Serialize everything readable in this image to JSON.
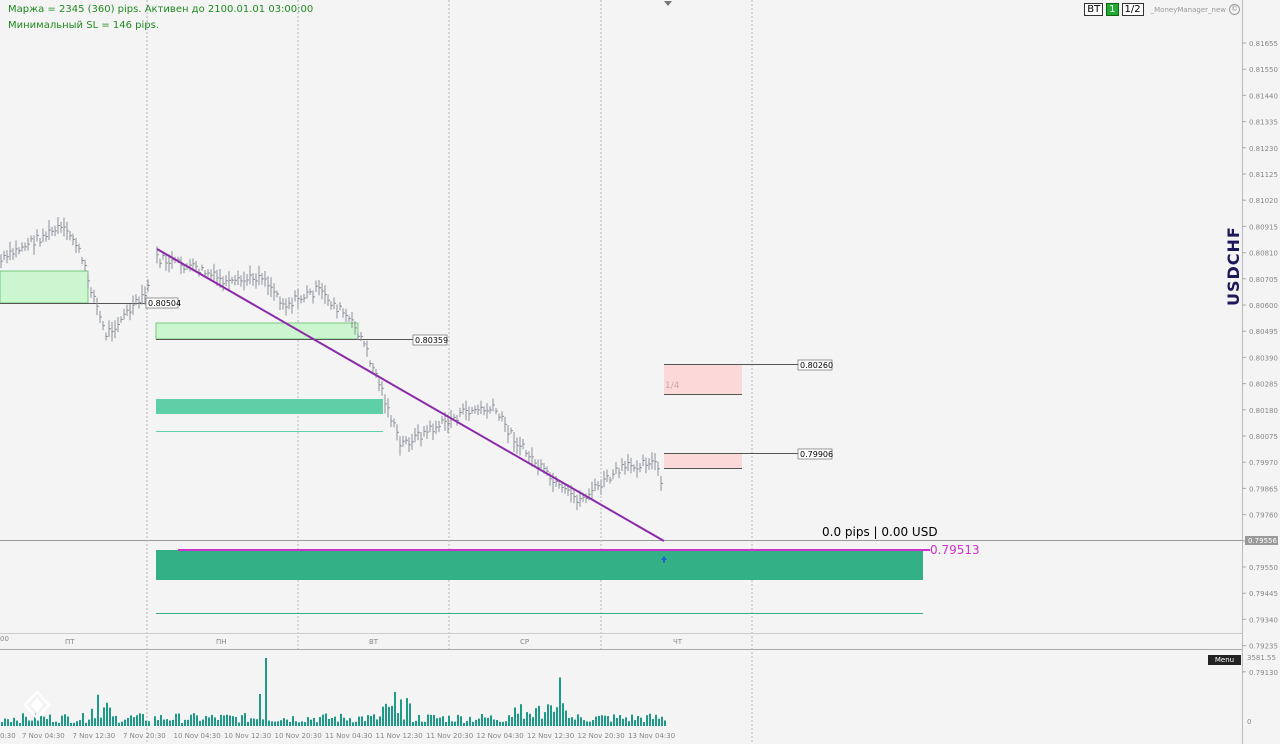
{
  "info": {
    "line1": "Маржа = 2345 (360) pips. Активен до 2100.01.01 03:00:00",
    "line2": "Минимальный SL = 146 pips."
  },
  "toolbar": {
    "bt_label": "BT",
    "one_label": "1",
    "half_label": "1/2",
    "mm_label": "_MoneyManager_new",
    "mm_icon": "©"
  },
  "symbol": "USDCHF",
  "pips_display": "0.0 pips | 0.00 USD",
  "menu_label": "Menu",
  "price_axis": {
    "ticks": [
      "0.81655",
      "0.81550",
      "0.81440",
      "0.81335",
      "0.81230",
      "0.81125",
      "0.81020",
      "0.80915",
      "0.80810",
      "0.80705",
      "0.80600",
      "0.80495",
      "0.80390",
      "0.80285",
      "0.80180",
      "0.80075",
      "0.79970",
      "0.79865",
      "0.79760",
      "0.79655",
      "0.79550",
      "0.79445",
      "0.79340",
      "0.79235",
      "0.79130"
    ],
    "current_price": "0.79556"
  },
  "volume_axis": {
    "max_label": "3581.55",
    "min_label": "0"
  },
  "day_labels": [
    "ПТ",
    "ПН",
    "ВТ",
    "СР",
    "ЧТ"
  ],
  "left_partial_label": "00",
  "time_labels": [
    "7 Nov 04:30",
    "7 Nov 12:30",
    "7 Nov 20:30",
    "10 Nov 04:30",
    "10 Nov 12:30",
    "10 Nov 20:30",
    "11 Nov 04:30",
    "11 Nov 12:30",
    "11 Nov 20:30",
    "12 Nov 04:30",
    "12 Nov 12:30",
    "12 Nov 20:30",
    "13 Nov 04:30"
  ],
  "first_time_partial": "0:30",
  "price_labels": {
    "p1": "0.80504",
    "p2": "0.80359",
    "p3": "0.80260",
    "p4": "0.79906",
    "target": "0.79513"
  },
  "zone_label": "1/4",
  "colors": {
    "bg": "#f4f4f4",
    "bar": "#8a8f98",
    "trend": "#8b2aa8",
    "green_zone": "#cdf5cf",
    "teal": "#3db68c",
    "pink": "#fcd6d6",
    "magenta": "#cc33cc",
    "axis_text": "#888888"
  }
}
